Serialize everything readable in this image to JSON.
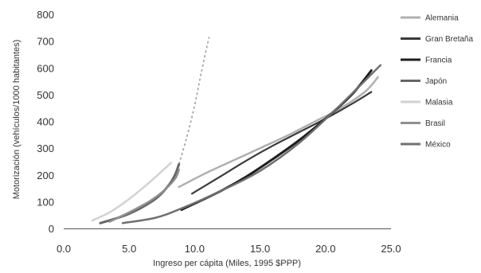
{
  "chart_data": {
    "type": "line",
    "title": "",
    "xlabel": "Ingreso per cápita (Miles, 1995 $PPP)",
    "ylabel": "Motorización (vehículos/1000 habitantes)",
    "xlim": [
      0,
      25
    ],
    "ylim": [
      0,
      800
    ],
    "x_ticks": [
      "0.0",
      "5.0",
      "10.0",
      "15.0",
      "20.0",
      "25.0"
    ],
    "y_ticks": [
      "0",
      "100",
      "200",
      "300",
      "400",
      "500",
      "600",
      "700",
      "800"
    ],
    "grid": false,
    "legend_position": "right",
    "series": [
      {
        "name": "Alemania",
        "color": "#b0b0b0",
        "width": 2.5,
        "x": [
          8.8,
          11,
          13,
          15,
          17,
          19,
          21,
          23,
          24
        ],
        "y": [
          155,
          210,
          255,
          300,
          345,
          395,
          445,
          510,
          565
        ]
      },
      {
        "name": "Gran Bretaña",
        "color": "#3a3a3a",
        "width": 2.2,
        "x": [
          9.8,
          12,
          14,
          16,
          18,
          20,
          22,
          23.5
        ],
        "y": [
          130,
          195,
          255,
          310,
          360,
          410,
          465,
          510
        ]
      },
      {
        "name": "Francia",
        "color": "#1e1e1e",
        "width": 3,
        "x": [
          9,
          12,
          14,
          16,
          18,
          20,
          22,
          23.5
        ],
        "y": [
          70,
          140,
          195,
          260,
          330,
          410,
          500,
          590
        ]
      },
      {
        "name": "Japón",
        "color": "#666666",
        "width": 3,
        "x": [
          2.8,
          5,
          7,
          8,
          8.5,
          8.8
        ],
        "y": [
          20,
          55,
          110,
          160,
          200,
          240
        ]
      },
      {
        "name": "Malasia",
        "color": "#d2d2d2",
        "width": 2.5,
        "x": [
          2.2,
          3.5,
          5,
          6.5,
          8.2
        ],
        "y": [
          30,
          60,
          110,
          170,
          245
        ]
      },
      {
        "name": "Brasil",
        "color": "#8f8f8f",
        "width": 2.5,
        "x": [
          3.5,
          5,
          6.5,
          7.5,
          8.5,
          8.8
        ],
        "y": [
          25,
          60,
          100,
          135,
          185,
          220
        ]
      },
      {
        "name": "México",
        "color": "#707070",
        "width": 2.5,
        "x": [
          4.5,
          7,
          9,
          12,
          15,
          18,
          21,
          24.2
        ],
        "y": [
          20,
          40,
          75,
          140,
          215,
          320,
          455,
          610
        ]
      }
    ],
    "extra_lines": [
      {
        "style": "dashed",
        "color": "#a0a0a0",
        "x": [
          8.8,
          9.4,
          10,
          10.5,
          11.1
        ],
        "y": [
          240,
          340,
          460,
          580,
          715
        ]
      }
    ]
  }
}
